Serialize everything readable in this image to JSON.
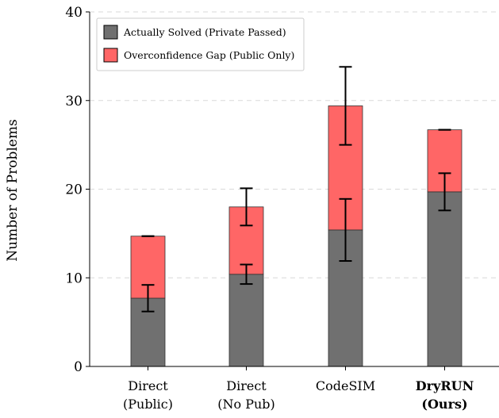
{
  "chart_data": {
    "type": "bar",
    "stacked": true,
    "categories": [
      {
        "lines": [
          "Direct",
          "(Public)"
        ],
        "bold": false
      },
      {
        "lines": [
          "Direct",
          "(No Pub)"
        ],
        "bold": false
      },
      {
        "lines": [
          "CodeSIM"
        ],
        "bold": false
      },
      {
        "lines": [
          "DryRUN",
          "(Ours)"
        ],
        "bold": true
      }
    ],
    "series": [
      {
        "name": "Actually Solved (Private Passed)",
        "color": "#707070",
        "values": [
          7.7,
          10.4,
          15.4,
          19.7
        ],
        "error": [
          1.5,
          1.1,
          3.5,
          2.1
        ]
      },
      {
        "name": "Overconfidence Gap (Public Only)",
        "color": "#ff6666",
        "values": [
          7.0,
          7.6,
          14.0,
          7.0
        ],
        "error": [
          0.0,
          2.1,
          4.4,
          0.0
        ]
      }
    ],
    "xlabel": "",
    "ylabel": "Number of Problems",
    "yticks": [
      0,
      10,
      20,
      30,
      40
    ],
    "ylim": [
      0,
      40
    ],
    "grid": "horizontal-dashed",
    "legend_position": "top-left"
  }
}
